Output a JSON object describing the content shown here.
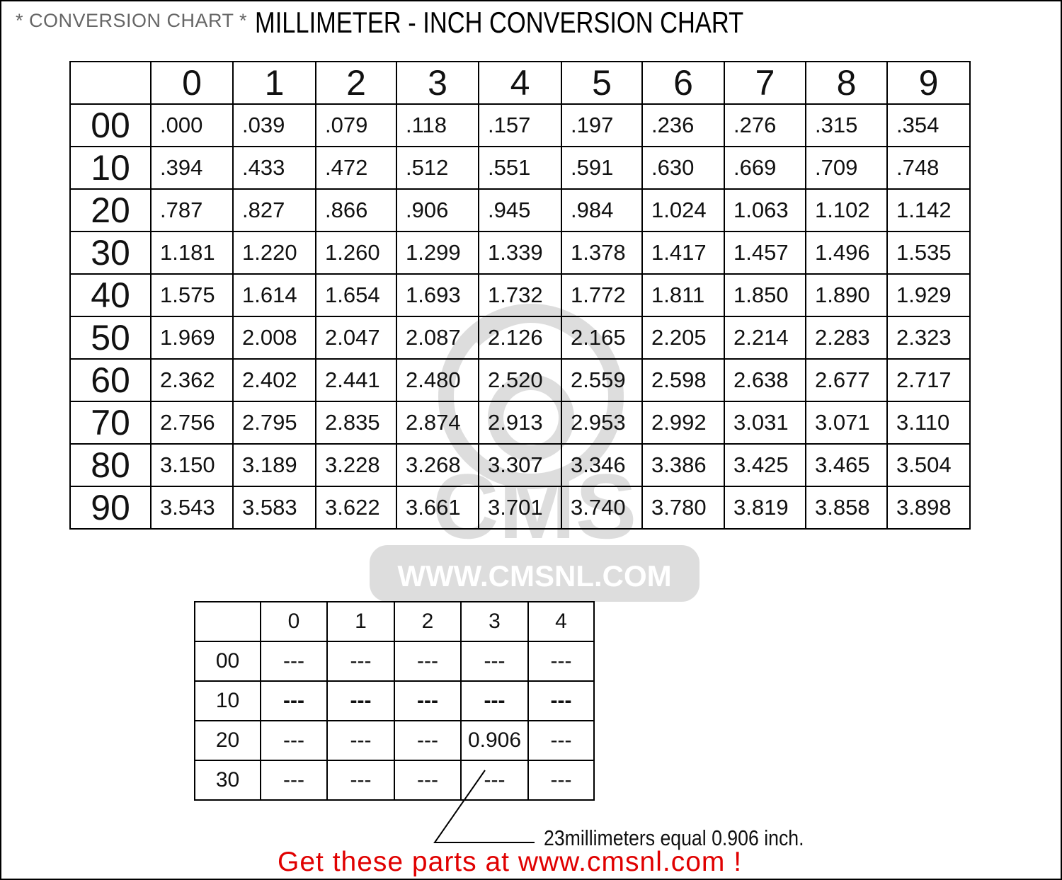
{
  "header": {
    "subtitle": "* CONVERSION CHART *",
    "title": "MILLIMETER - INCH CONVERSION CHART"
  },
  "watermark": {
    "logo": "CMS",
    "url": "WWW.CMSNL.COM"
  },
  "main_table": {
    "columns": [
      "0",
      "1",
      "2",
      "3",
      "4",
      "5",
      "6",
      "7",
      "8",
      "9"
    ],
    "rows": [
      {
        "label": "00",
        "values": [
          ".000",
          ".039",
          ".079",
          ".118",
          ".157",
          ".197",
          ".236",
          ".276",
          ".315",
          ".354"
        ]
      },
      {
        "label": "10",
        "values": [
          ".394",
          ".433",
          ".472",
          ".512",
          ".551",
          ".591",
          ".630",
          ".669",
          ".709",
          ".748"
        ]
      },
      {
        "label": "20",
        "values": [
          ".787",
          ".827",
          ".866",
          ".906",
          ".945",
          ".984",
          "1.024",
          "1.063",
          "1.102",
          "1.142"
        ]
      },
      {
        "label": "30",
        "values": [
          "1.181",
          "1.220",
          "1.260",
          "1.299",
          "1.339",
          "1.378",
          "1.417",
          "1.457",
          "1.496",
          "1.535"
        ]
      },
      {
        "label": "40",
        "values": [
          "1.575",
          "1.614",
          "1.654",
          "1.693",
          "1.732",
          "1.772",
          "1.811",
          "1.850",
          "1.890",
          "1.929"
        ]
      },
      {
        "label": "50",
        "values": [
          "1.969",
          "2.008",
          "2.047",
          "2.087",
          "2.126",
          "2.165",
          "2.205",
          "2.214",
          "2.283",
          "2.323"
        ]
      },
      {
        "label": "60",
        "values": [
          "2.362",
          "2.402",
          "2.441",
          "2.480",
          "2.520",
          "2.559",
          "2.598",
          "2.638",
          "2.677",
          "2.717"
        ]
      },
      {
        "label": "70",
        "values": [
          "2.756",
          "2.795",
          "2.835",
          "2.874",
          "2.913",
          "2.953",
          "2.992",
          "3.031",
          "3.071",
          "3.110"
        ]
      },
      {
        "label": "80",
        "values": [
          "3.150",
          "3.189",
          "3.228",
          "3.268",
          "3.307",
          "3.346",
          "3.386",
          "3.425",
          "3.465",
          "3.504"
        ]
      },
      {
        "label": "90",
        "values": [
          "3.543",
          "3.583",
          "3.622",
          "3.661",
          "3.701",
          "3.740",
          "3.780",
          "3.819",
          "3.858",
          "3.898"
        ]
      }
    ]
  },
  "example_table": {
    "columns": [
      "0",
      "1",
      "2",
      "3",
      "4"
    ],
    "rows": [
      {
        "label": "00",
        "values": [
          "---",
          "---",
          "---",
          "---",
          "---"
        ],
        "bold": false
      },
      {
        "label": "10",
        "values": [
          "---",
          "---",
          "---",
          "---",
          "---"
        ],
        "bold": true
      },
      {
        "label": "20",
        "values": [
          "---",
          "---",
          "---",
          "0.906",
          "---"
        ],
        "bold": false
      },
      {
        "label": "30",
        "values": [
          "---",
          "---",
          "---",
          "---",
          "---"
        ],
        "bold": false
      }
    ]
  },
  "example_note": "23millimeters equal 0.906 inch.",
  "promo": "Get these parts at www.cmsnl.com !",
  "colors": {
    "promo": "#e00000",
    "subtitle": "#666666",
    "grid": "#000000"
  }
}
